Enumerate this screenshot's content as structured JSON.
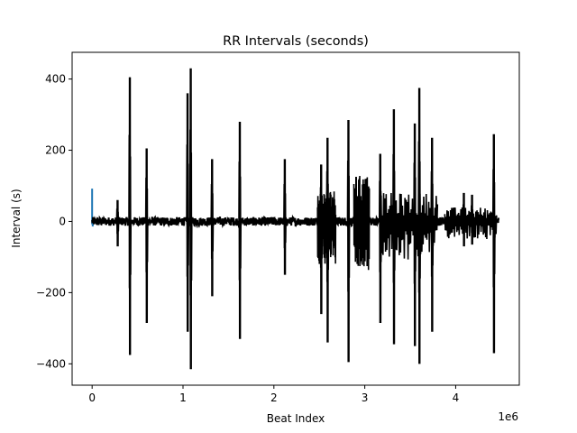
{
  "chart_data": {
    "type": "line",
    "title": "RR Intervals (seconds)",
    "xlabel": "Beat Index",
    "ylabel": "Interval (s)",
    "x_offset_label": "1e6",
    "xlim": [
      -220000,
      4700000
    ],
    "ylim": [
      -460,
      475
    ],
    "x_ticks": [
      {
        "value": 0,
        "label": "0"
      },
      {
        "value": 1000000,
        "label": "1"
      },
      {
        "value": 2000000,
        "label": "2"
      },
      {
        "value": 3000000,
        "label": "3"
      },
      {
        "value": 4000000,
        "label": "4"
      }
    ],
    "y_ticks": [
      {
        "value": -400,
        "label": "−400"
      },
      {
        "value": -200,
        "label": "−200"
      },
      {
        "value": 0,
        "label": "0"
      },
      {
        "value": 200,
        "label": "200"
      },
      {
        "value": 400,
        "label": "400"
      }
    ],
    "grid": false,
    "legend": "none",
    "series": [
      {
        "color": "#1f77b4",
        "points": [
          [
            0,
            0
          ],
          [
            0,
            92
          ],
          [
            0,
            45
          ],
          [
            0,
            -8
          ],
          [
            6000,
            4
          ],
          [
            6000,
            -14
          ],
          [
            12000,
            2
          ]
        ]
      },
      {
        "color": "#000000",
        "baseline": {
          "x_start": 0,
          "x_end": 4480000,
          "amplitude": 12
        },
        "spikes": [
          {
            "x": 280000,
            "high": 60,
            "low": -70
          },
          {
            "x": 415000,
            "high": 405,
            "low": -375
          },
          {
            "x": 600000,
            "high": 205,
            "low": -285
          },
          {
            "x": 1050000,
            "high": 360,
            "low": -310
          },
          {
            "x": 1085000,
            "high": 430,
            "low": -415
          },
          {
            "x": 1320000,
            "high": 175,
            "low": -210
          },
          {
            "x": 1625000,
            "high": 280,
            "low": -330
          },
          {
            "x": 2120000,
            "high": 175,
            "low": -150
          },
          {
            "x": 2520000,
            "high": 160,
            "low": -260
          },
          {
            "x": 2590000,
            "high": 235,
            "low": -340
          },
          {
            "x": 2820000,
            "high": 285,
            "low": -395
          },
          {
            "x": 3170000,
            "high": 190,
            "low": -285
          },
          {
            "x": 3320000,
            "high": 315,
            "low": -345
          },
          {
            "x": 3550000,
            "high": 275,
            "low": -350
          },
          {
            "x": 3600000,
            "high": 375,
            "low": -400
          },
          {
            "x": 3740000,
            "high": 235,
            "low": -310
          },
          {
            "x": 4090000,
            "high": 80,
            "low": -70
          },
          {
            "x": 4180000,
            "high": 75,
            "low": -65
          },
          {
            "x": 4420000,
            "high": 245,
            "low": -370
          }
        ],
        "dense_regions": [
          {
            "x_start": 2480000,
            "x_end": 2680000,
            "high": 90,
            "low": -120
          },
          {
            "x_start": 2880000,
            "x_end": 3050000,
            "high": 130,
            "low": -140
          },
          {
            "x_start": 3180000,
            "x_end": 3800000,
            "high": 80,
            "low": -110
          },
          {
            "x_start": 3880000,
            "x_end": 4450000,
            "high": 40,
            "low": -50
          }
        ]
      }
    ]
  }
}
